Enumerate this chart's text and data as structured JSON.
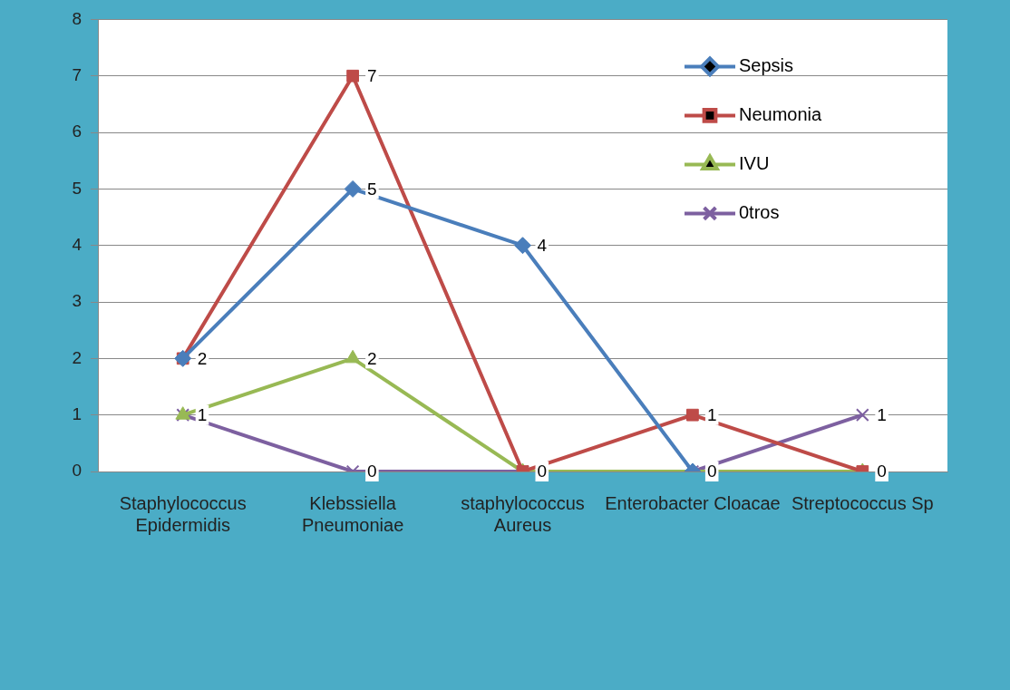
{
  "chart_data": {
    "type": "line",
    "categories": [
      "Staphylococcus Epidermidis",
      "Klebssiella Pneumoniae",
      "staphylococcus Aureus",
      "Enterobacter Cloacae",
      "Streptococcus Sp"
    ],
    "series": [
      {
        "name": "Sepsis",
        "color": "#4a7ebb",
        "marker": "diamond",
        "values": [
          2,
          5,
          4,
          0,
          null
        ],
        "value_labels": [
          null,
          "5",
          "4",
          "0",
          null
        ]
      },
      {
        "name": "Neumonia",
        "color": "#be4b48",
        "marker": "square",
        "values": [
          2,
          7,
          0,
          1,
          0
        ],
        "value_labels": [
          "2",
          "7",
          "0",
          "1",
          null
        ]
      },
      {
        "name": "IVU",
        "color": "#98b954",
        "marker": "triangle",
        "values": [
          1,
          2,
          0,
          0,
          0
        ],
        "value_labels": [
          null,
          "2",
          null,
          null,
          "0"
        ]
      },
      {
        "name": "0tros",
        "color": "#7d60a0",
        "marker": "cross",
        "values": [
          1,
          0,
          0,
          0,
          1
        ],
        "value_labels": [
          "1",
          "0",
          null,
          null,
          "1"
        ]
      }
    ],
    "ylim": [
      0,
      8
    ],
    "yticks": [
      0,
      1,
      2,
      3,
      4,
      5,
      6,
      7,
      8
    ],
    "grid": "y",
    "legend": "top right"
  }
}
